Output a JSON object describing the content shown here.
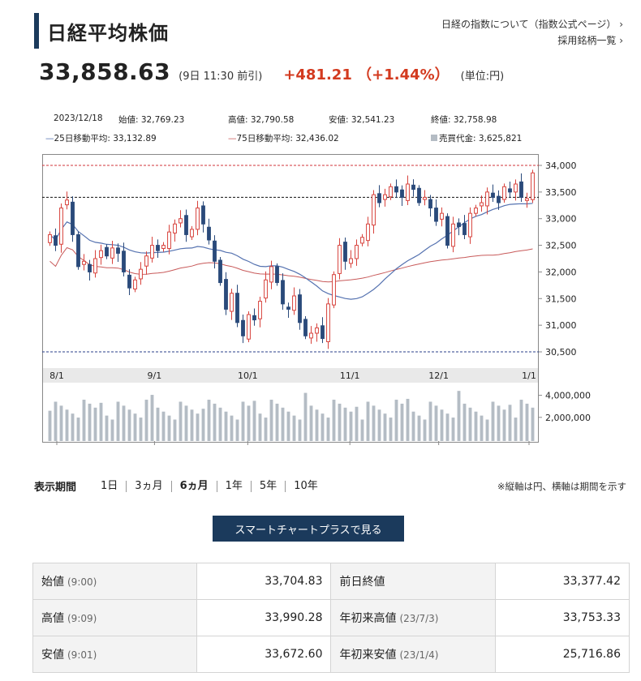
{
  "header": {
    "title": "日経平均株価",
    "link1": "日経の指数について（指数公式ページ）",
    "link2": "採用銘柄一覧"
  },
  "price": {
    "value": "33,858.63",
    "time": "(9日 11:30 前引)",
    "change": "+481.21 （+1.44%）",
    "unit": "(単位:円)"
  },
  "info": {
    "date": "2023/12/18",
    "open": "始値: 32,769.23",
    "high": "高値: 32,790.58",
    "low": "安値: 32,541.23",
    "close": "終値: 32,758.98",
    "ma25": "25日移動平均: 33,132.89",
    "ma75": "75日移動平均: 32,436.02",
    "turnover": "売買代金: 3,625,821"
  },
  "colors": {
    "up": "#d8433d",
    "down": "#2a4a7b",
    "ma25": "#5572b0",
    "ma75": "#c85a5a",
    "volume": "#b4bcc4",
    "navy": "#1b3a5c",
    "change": "#d33a1f"
  },
  "chart_data": [
    {
      "type": "candlestick",
      "title": "",
      "x_ticks": [
        "8/1",
        "9/1",
        "10/1",
        "11/1",
        "12/1",
        "1/1"
      ],
      "y_ticks": [
        "34,000",
        "33,500",
        "33,000",
        "32,500",
        "32,000",
        "31,500",
        "31,000",
        "30,500"
      ],
      "ylim": [
        30500,
        34000
      ],
      "grid": false,
      "reference_lines": [
        34000,
        33400,
        30500
      ],
      "closes": [
        32700,
        32500,
        33200,
        33350,
        32700,
        32100,
        32200,
        32000,
        32250,
        32400,
        32300,
        32450,
        32350,
        32000,
        31700,
        31850,
        32050,
        32300,
        32500,
        32400,
        32500,
        32750,
        32900,
        33000,
        32700,
        32800,
        33200,
        32900,
        32600,
        32200,
        31800,
        31300,
        31600,
        31050,
        30800,
        31200,
        31100,
        31450,
        31850,
        32100,
        31800,
        31400,
        31300,
        31550,
        31050,
        30800,
        30850,
        30950,
        30750,
        31400,
        31950,
        32500,
        32200,
        32250,
        32500,
        32650,
        32900,
        33450,
        33300,
        33450,
        33600,
        33500,
        33400,
        33650,
        33550,
        33300,
        33400,
        33200,
        32950,
        33100,
        32500,
        32900,
        32850,
        32700,
        33100,
        33200,
        33300,
        33500,
        33400,
        33300,
        33600,
        33500,
        33650,
        33400,
        33377,
        33859
      ],
      "volume_ticks": [
        "4,000,000",
        "2,000,000"
      ]
    }
  ],
  "period": {
    "label": "表示期間",
    "options": [
      "1日",
      "3ヵ月",
      "6ヵ月",
      "1年",
      "5年",
      "10年"
    ],
    "active": "6ヵ月",
    "note": "※縦軸は円、横軸は期間を示す"
  },
  "button": {
    "label": "スマートチャートプラスで見る"
  },
  "stats": [
    {
      "l1": "始値",
      "s1": "(9:00)",
      "v1": "33,704.83",
      "l2": "前日終値",
      "s2": "",
      "v2": "33,377.42"
    },
    {
      "l1": "高値",
      "s1": "(9:09)",
      "v1": "33,990.28",
      "l2": "年初来高値",
      "s2": "(23/7/3)",
      "v2": "33,753.33"
    },
    {
      "l1": "安値",
      "s1": "(9:01)",
      "v1": "33,672.60",
      "l2": "年初来安値",
      "s2": "(23/1/4)",
      "v2": "25,716.86"
    }
  ]
}
